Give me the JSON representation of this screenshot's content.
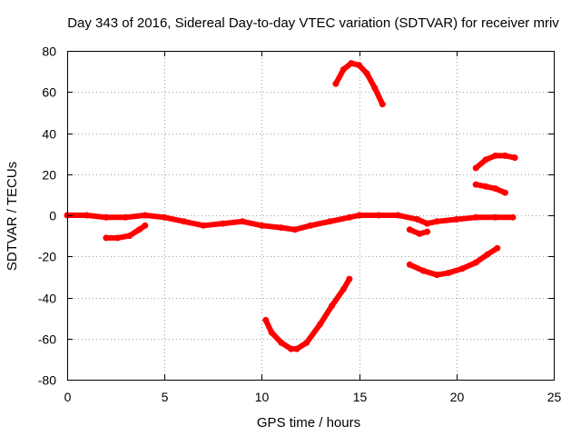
{
  "chart_data": {
    "type": "line",
    "title": "Day 343 of 2016, Sidereal Day-to-day VTEC variation (SDTVAR) for receiver mriv",
    "xlabel": "GPS time / hours",
    "ylabel": "SDTVAR / TECUs",
    "xlim": [
      0,
      25
    ],
    "ylim": [
      -80,
      80
    ],
    "xticks": [
      "0",
      "5",
      "10",
      "15",
      "20",
      "25"
    ],
    "yticks": [
      "80",
      "60",
      "40",
      "20",
      "0",
      "-20",
      "-40",
      "-60",
      "-80"
    ],
    "grid": true,
    "legend": "none",
    "color": "#ff0000",
    "series": [
      {
        "x": [
          0,
          1,
          2,
          3,
          4,
          5,
          6,
          7,
          8,
          9,
          10,
          11,
          11.7,
          12.5,
          13.5,
          14.5,
          15,
          16,
          17,
          18,
          18.5,
          19,
          20,
          21,
          22,
          22.9
        ],
        "y": [
          0,
          0,
          -1,
          -1,
          0,
          -1,
          -3,
          -5,
          -4,
          -3,
          -5,
          -6,
          -7,
          -5,
          -3,
          -1,
          0,
          0,
          0,
          -2,
          -4,
          -3,
          -2,
          -1,
          -1,
          -1
        ]
      },
      {
        "x": [
          2,
          2.6,
          3.2,
          3.7,
          4.0
        ],
        "y": [
          -11,
          -11,
          -10,
          -7,
          -5
        ]
      },
      {
        "x": [
          10.2,
          10.5,
          11,
          11.5,
          11.8,
          12.3,
          13,
          13.6,
          14.2,
          14.5
        ],
        "y": [
          -51,
          -57,
          -62,
          -65,
          -65,
          -62,
          -53,
          -44,
          -36,
          -31
        ]
      },
      {
        "x": [
          13.8,
          14.2,
          14.6,
          15.0,
          15.4,
          15.8,
          16.2
        ],
        "y": [
          64,
          71,
          74,
          73,
          69,
          62,
          54
        ]
      },
      {
        "x": [
          17.6,
          18.1,
          18.5
        ],
        "y": [
          -7,
          -9,
          -8
        ]
      },
      {
        "x": [
          17.6,
          18.3,
          19.0,
          19.6,
          20.3,
          21.0,
          21.6,
          22.1
        ],
        "y": [
          -24,
          -27,
          -29,
          -28,
          -26,
          -23,
          -19,
          -16
        ]
      },
      {
        "x": [
          21.0,
          21.5,
          22.0,
          22.5,
          23.0
        ],
        "y": [
          23,
          27,
          29,
          29,
          28
        ]
      },
      {
        "x": [
          21.0,
          21.5,
          22.0,
          22.5
        ],
        "y": [
          15,
          14,
          13,
          11
        ]
      }
    ]
  }
}
